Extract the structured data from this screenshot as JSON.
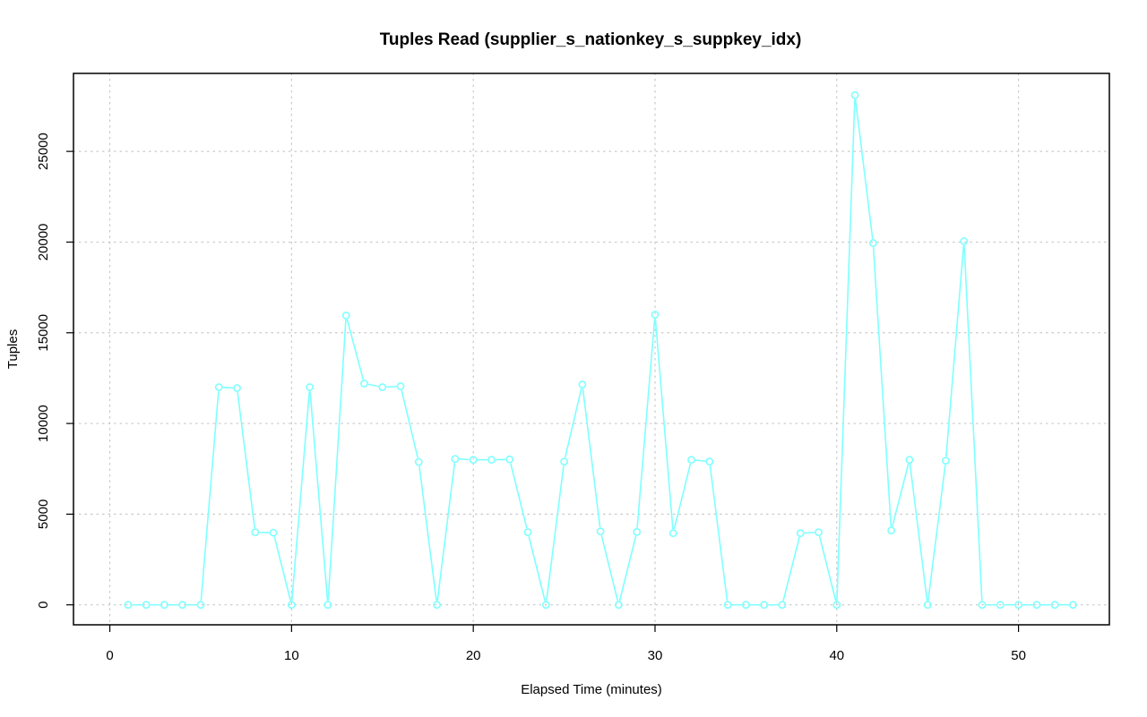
{
  "chart_data": {
    "type": "line",
    "title": "Tuples Read (supplier_s_nationkey_s_suppkey_idx)",
    "xlabel": "Elapsed Time (minutes)",
    "ylabel": "Tuples",
    "xlim": [
      -2,
      55
    ],
    "ylim": [
      -1100,
      29300
    ],
    "xticks": [
      0,
      10,
      20,
      30,
      40,
      50
    ],
    "yticks": [
      0,
      5000,
      10000,
      15000,
      20000,
      25000
    ],
    "grid": true,
    "series": [
      {
        "color": "#7fffff",
        "x": [
          1,
          2,
          3,
          4,
          5,
          6,
          7,
          8,
          9,
          10,
          11,
          12,
          13,
          14,
          15,
          16,
          17,
          18,
          19,
          20,
          21,
          22,
          23,
          24,
          25,
          26,
          27,
          28,
          29,
          30,
          31,
          32,
          33,
          34,
          35,
          36,
          37,
          38,
          39,
          40,
          41,
          42,
          43,
          44,
          45,
          46,
          47,
          48,
          49,
          50,
          51,
          52,
          53
        ],
        "y": [
          0,
          0,
          0,
          0,
          0,
          12000,
          11950,
          4000,
          3980,
          0,
          12000,
          0,
          15950,
          12200,
          12000,
          12050,
          7880,
          0,
          8050,
          8000,
          8000,
          8020,
          4000,
          0,
          7900,
          12150,
          4050,
          0,
          4020,
          16000,
          3950,
          8000,
          7900,
          0,
          0,
          0,
          0,
          3950,
          4000,
          0,
          28100,
          19950,
          4100,
          8000,
          0,
          7950,
          20050,
          0,
          0,
          0,
          0,
          0,
          0
        ]
      }
    ]
  }
}
